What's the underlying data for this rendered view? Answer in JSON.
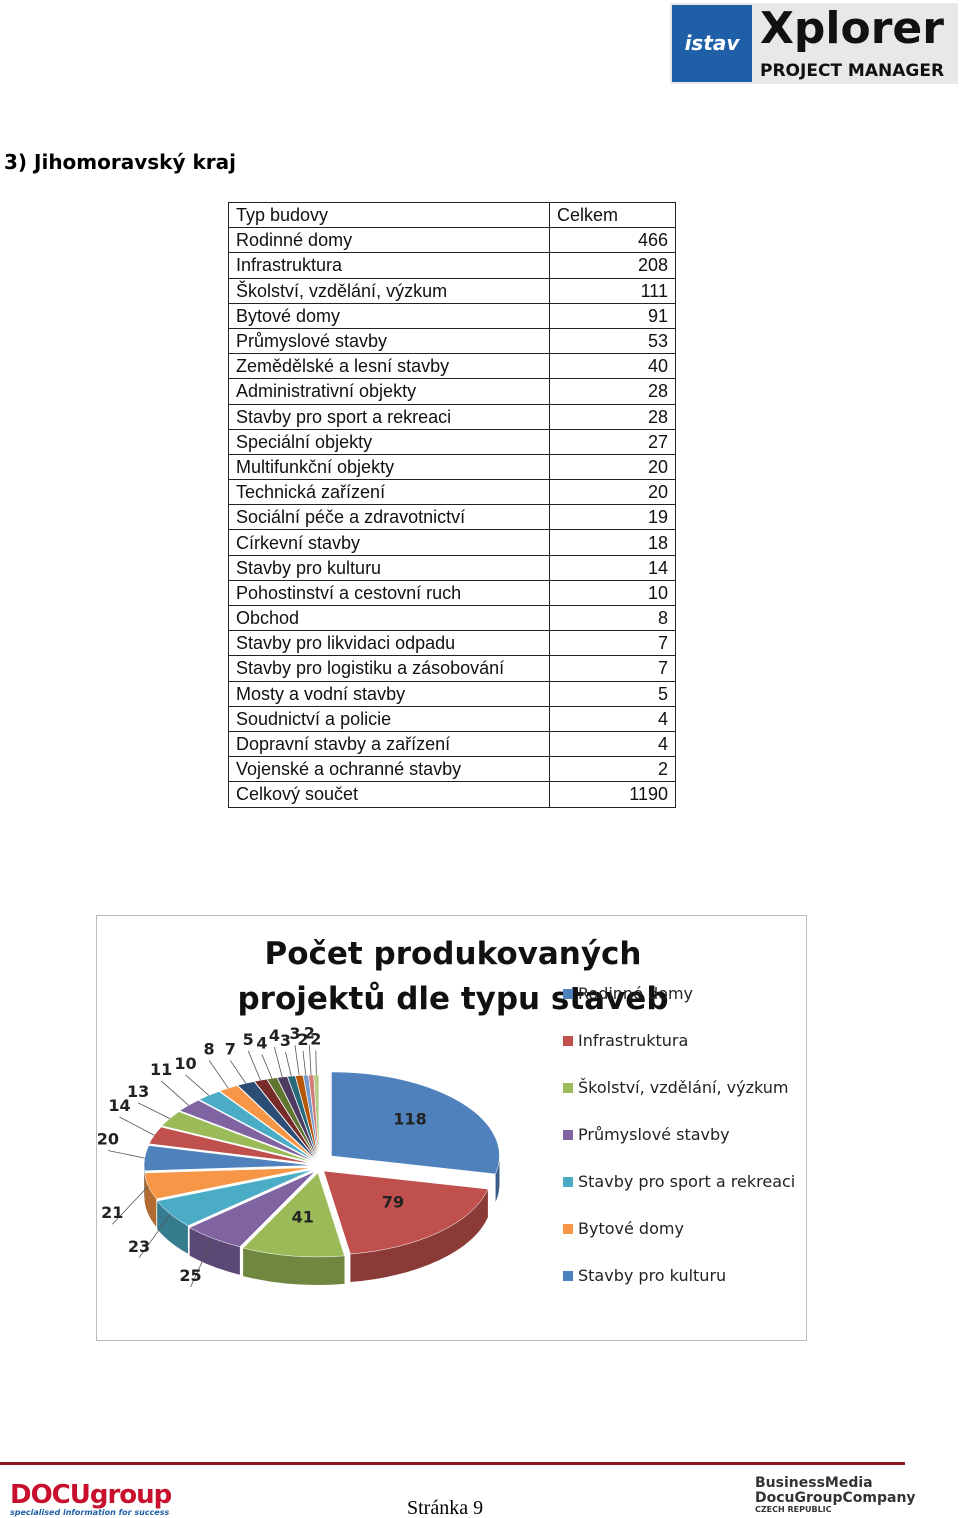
{
  "header": {
    "logo_left": "istav",
    "logo_title": "Xplorer",
    "logo_subtitle": "PROJECT MANAGER"
  },
  "section_title": "3) Jihomoravský kraj",
  "table": {
    "header": [
      "Typ budovy",
      "Celkem"
    ],
    "rows": [
      [
        "Rodinné domy",
        466
      ],
      [
        "Infrastruktura",
        208
      ],
      [
        "Školství, vzdělání, výzkum",
        111
      ],
      [
        "Bytové domy",
        91
      ],
      [
        "Průmyslové stavby",
        53
      ],
      [
        "Zemědělské a lesní stavby",
        40
      ],
      [
        "Administrativní objekty",
        28
      ],
      [
        "Stavby pro sport a rekreaci",
        28
      ],
      [
        "Speciální objekty",
        27
      ],
      [
        "Multifunkční objekty",
        20
      ],
      [
        "Technická zařízení",
        20
      ],
      [
        "Sociální péče a zdravotnictví",
        19
      ],
      [
        "Církevní stavby",
        18
      ],
      [
        "Stavby pro kulturu",
        14
      ],
      [
        "Pohostinství a cestovní ruch",
        10
      ],
      [
        "Obchod",
        8
      ],
      [
        "Stavby pro likvidaci odpadu",
        7
      ],
      [
        "Stavby pro logistiku a zásobování",
        7
      ],
      [
        "Mosty a vodní stavby",
        5
      ],
      [
        "Soudnictví a policie",
        4
      ],
      [
        "Dopravní stavby a zařízení",
        4
      ],
      [
        "Vojenské a ochranné stavby",
        2
      ]
    ],
    "total": [
      "Celkový součet",
      1190
    ]
  },
  "chart_data": {
    "type": "pie",
    "title": "Počet produkovaných projektů dle typu staveb",
    "values": [
      118,
      79,
      41,
      25,
      23,
      21,
      20,
      14,
      13,
      11,
      10,
      8,
      7,
      5,
      4,
      4,
      3,
      3,
      2,
      2,
      2
    ],
    "colors": [
      "#4f81bd",
      "#c0504d",
      "#9bbb59",
      "#8064a2",
      "#4bacc6",
      "#f79646",
      "#4f81bd",
      "#c0504d",
      "#9bbb59",
      "#8064a2",
      "#4bacc6",
      "#f79646",
      "#2c4d75",
      "#772c2a",
      "#5f7530",
      "#4d3b62",
      "#276a7c",
      "#b65708",
      "#729aca",
      "#d07c7a",
      "#b2cb85"
    ],
    "legend": [
      {
        "name": "Rodinné domy",
        "color": "#4f81bd"
      },
      {
        "name": "Infrastruktura",
        "color": "#c0504d"
      },
      {
        "name": "Školství, vzdělání, výzkum",
        "color": "#9bbb59"
      },
      {
        "name": "Průmyslové stavby",
        "color": "#8064a2"
      },
      {
        "name": "Stavby pro sport a rekreaci",
        "color": "#4bacc6"
      },
      {
        "name": "Bytové domy",
        "color": "#f79646"
      },
      {
        "name": "Stavby pro kulturu",
        "color": "#4f81bd"
      }
    ]
  },
  "footer": {
    "brand": "DOCUgroup",
    "tagline": "specialised information for success",
    "page": "Stránka 9",
    "partner_1": "BusinessMedia",
    "partner_2": "DocuGroupCompany",
    "partner_3": "CZECH REPUBLIC"
  }
}
